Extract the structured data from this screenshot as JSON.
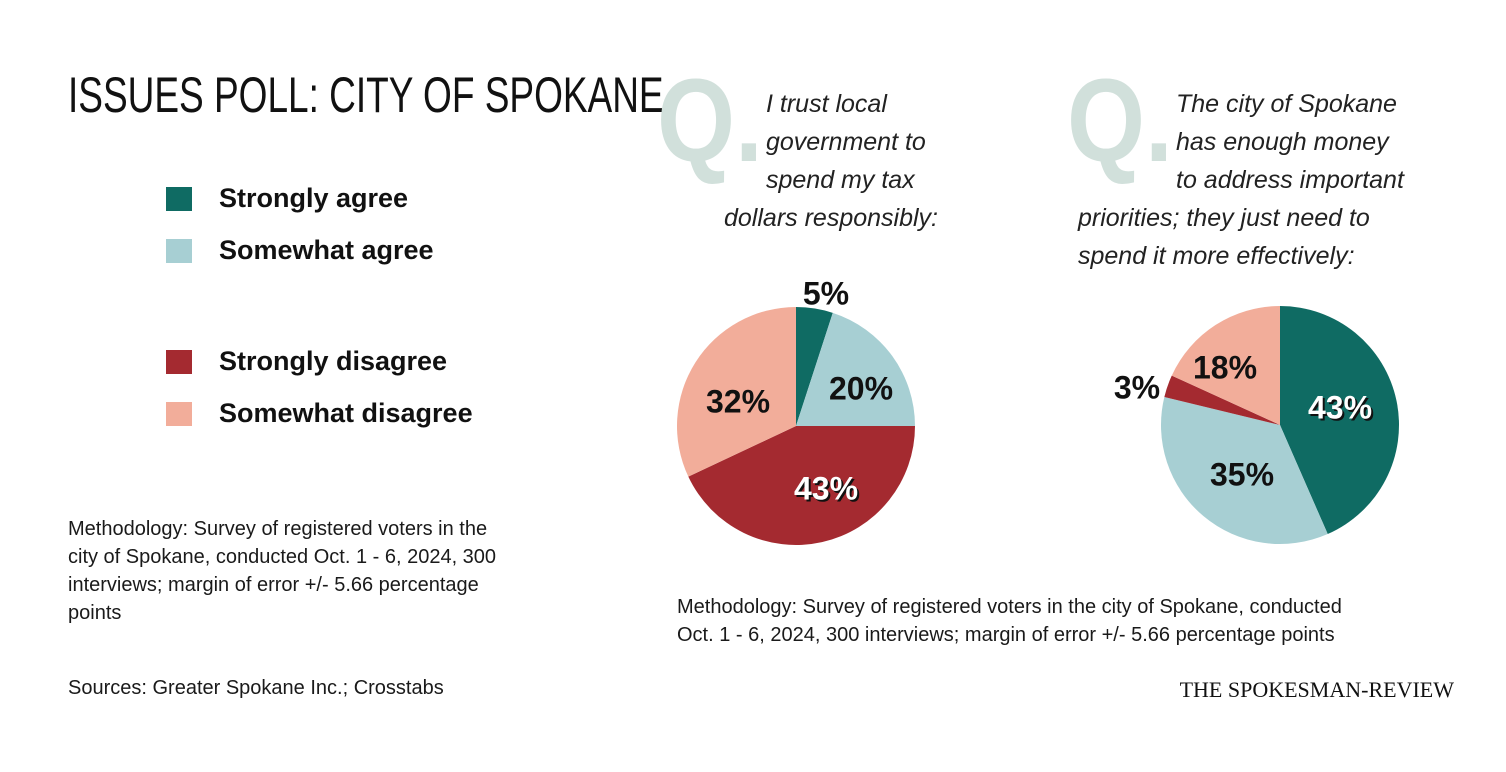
{
  "title": "ISSUES POLL: CITY OF SPOKANE",
  "legend": [
    {
      "label": "Strongly agree",
      "color": "#0f6b63"
    },
    {
      "label": "Somewhat agree",
      "color": "#a7cfd3"
    },
    {
      "label": "Strongly disagree",
      "color": "#a42a30"
    },
    {
      "label": "Somewhat disagree",
      "color": "#f2ad9a"
    }
  ],
  "methodology_left": [
    "Methodology: Survey of registered voters in the",
    "city of Spokane, conducted Oct. 1 - 6, 2024, 300",
    "interviews; margin of error +/- 5.66 percentage",
    "points"
  ],
  "methodology_right": [
    "Methodology: Survey of registered voters in the city of Spokane, conducted",
    "Oct. 1 - 6, 2024, 300 interviews; margin of error +/- 5.66 percentage points"
  ],
  "sources": "Sources: Greater Spokane Inc.; Crosstabs",
  "brand": "THE SPOKESMAN-REVIEW",
  "qmark": "Q.",
  "chart_data": [
    {
      "type": "pie",
      "question_lines": [
        "I trust local",
        "government to",
        "spend my tax",
        "dollars responsibly:"
      ],
      "slices": [
        {
          "category": "Strongly agree",
          "value": 5,
          "label": "5%"
        },
        {
          "category": "Somewhat agree",
          "value": 20,
          "label": "20%"
        },
        {
          "category": "Strongly disagree",
          "value": 43,
          "label": "43%"
        },
        {
          "category": "Somewhat disagree",
          "value": 32,
          "label": "32%"
        }
      ]
    },
    {
      "type": "pie",
      "question_lines": [
        "The city of Spokane",
        "has enough money",
        "to address important",
        "priorities; they just need to",
        "spend it more effectively:"
      ],
      "slices": [
        {
          "category": "Strongly agree",
          "value": 43,
          "label": "43%"
        },
        {
          "category": "Somewhat agree",
          "value": 35,
          "label": "35%"
        },
        {
          "category": "Strongly disagree",
          "value": 3,
          "label": "3%"
        },
        {
          "category": "Somewhat disagree",
          "value": 18,
          "label": "18%"
        }
      ]
    }
  ]
}
